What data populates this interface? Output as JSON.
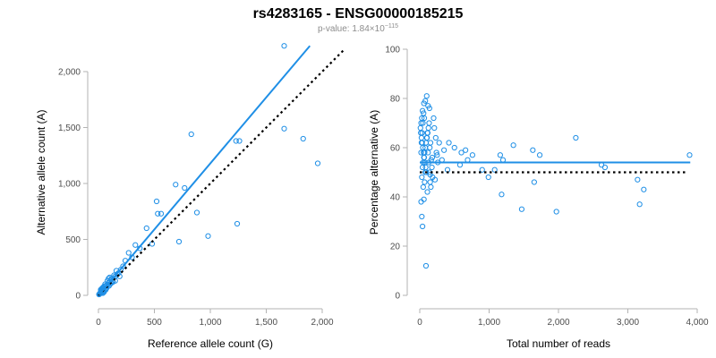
{
  "title": "rs4283165 - ENSG00000185215",
  "subtitle": {
    "prefix": "p-value: 1.84×10",
    "exponent": "−115"
  },
  "colors": {
    "points": "#1f8fe6",
    "fit": "#1f8fe6",
    "reference": "#000000",
    "axis": "#b3b3b3",
    "ticklabel": "#4d4d4d"
  },
  "chart_data": [
    {
      "type": "scatter",
      "xlabel": "Reference allele count (G)",
      "ylabel": "Alternative allele count (A)",
      "xlim": [
        0,
        2000
      ],
      "ylim": [
        0,
        2200
      ],
      "xticks": [
        0,
        500,
        1000,
        1500,
        2000
      ],
      "xtick_labels": [
        "0",
        "500",
        "1,000",
        "1,500",
        "2,000"
      ],
      "yticks": [
        0,
        500,
        1000,
        1500,
        2000
      ],
      "ytick_labels": [
        "0",
        "500",
        "1,000",
        "1,500",
        "2,000"
      ],
      "fit_line": {
        "x": [
          5,
          1890
        ],
        "y": [
          5,
          2230
        ]
      },
      "reference_line": {
        "x": [
          0,
          2200
        ],
        "y": [
          0,
          2200
        ],
        "style": "dotted"
      },
      "points": [
        [
          1660,
          2230
        ],
        [
          830,
          1440
        ],
        [
          1230,
          1380
        ],
        [
          1260,
          1380
        ],
        [
          1660,
          1490
        ],
        [
          1830,
          1400
        ],
        [
          1960,
          1180
        ],
        [
          690,
          990
        ],
        [
          770,
          960
        ],
        [
          880,
          740
        ],
        [
          980,
          530
        ],
        [
          720,
          480
        ],
        [
          1240,
          640
        ],
        [
          520,
          840
        ],
        [
          530,
          730
        ],
        [
          560,
          730
        ],
        [
          430,
          600
        ],
        [
          480,
          460
        ],
        [
          330,
          450
        ],
        [
          370,
          420
        ],
        [
          270,
          380
        ],
        [
          300,
          340
        ],
        [
          240,
          310
        ],
        [
          220,
          260
        ],
        [
          200,
          230
        ],
        [
          180,
          200
        ],
        [
          160,
          220
        ],
        [
          150,
          170
        ],
        [
          140,
          180
        ],
        [
          120,
          150
        ],
        [
          130,
          120
        ],
        [
          110,
          140
        ],
        [
          100,
          120
        ],
        [
          90,
          110
        ],
        [
          80,
          130
        ],
        [
          70,
          90
        ],
        [
          60,
          100
        ],
        [
          50,
          80
        ],
        [
          45,
          60
        ],
        [
          40,
          70
        ],
        [
          35,
          50
        ],
        [
          30,
          40
        ],
        [
          25,
          45
        ],
        [
          20,
          30
        ],
        [
          15,
          20
        ],
        [
          10,
          15
        ],
        [
          8,
          10
        ],
        [
          5,
          8
        ],
        [
          60,
          55
        ],
        [
          70,
          60
        ],
        [
          55,
          75
        ],
        [
          75,
          70
        ],
        [
          85,
          95
        ],
        [
          95,
          85
        ],
        [
          105,
          100
        ],
        [
          115,
          110
        ],
        [
          125,
          130
        ],
        [
          65,
          50
        ],
        [
          45,
          40
        ],
        [
          35,
          30
        ],
        [
          25,
          20
        ],
        [
          40,
          20
        ],
        [
          50,
          30
        ],
        [
          30,
          60
        ],
        [
          20,
          50
        ],
        [
          90,
          150
        ],
        [
          100,
          160
        ],
        [
          150,
          130
        ],
        [
          170,
          190
        ],
        [
          190,
          170
        ]
      ]
    },
    {
      "type": "scatter",
      "xlabel": "Total number of reads",
      "ylabel": "Percentage alternative (A)",
      "xlim": [
        0,
        4000
      ],
      "ylim": [
        0,
        100
      ],
      "xticks": [
        0,
        1000,
        2000,
        3000,
        4000
      ],
      "xtick_labels": [
        "0",
        "1,000",
        "2,000",
        "3,000",
        "4,000"
      ],
      "yticks": [
        0,
        20,
        40,
        60,
        80,
        100
      ],
      "ytick_labels": [
        "0",
        "20",
        "40",
        "60",
        "80",
        "100"
      ],
      "fit_line": {
        "x": [
          0,
          3900
        ],
        "y": [
          54,
          54
        ]
      },
      "reference_line": {
        "x": [
          0,
          3870
        ],
        "y": [
          50,
          50
        ],
        "style": "dotted"
      },
      "points": [
        [
          3890,
          57
        ],
        [
          3230,
          43
        ],
        [
          3170,
          37
        ],
        [
          3140,
          47
        ],
        [
          2670,
          52
        ],
        [
          2620,
          53
        ],
        [
          2250,
          64
        ],
        [
          1970,
          34
        ],
        [
          1730,
          57
        ],
        [
          1650,
          46
        ],
        [
          1630,
          59
        ],
        [
          1470,
          35
        ],
        [
          1350,
          61
        ],
        [
          1200,
          55
        ],
        [
          1160,
          57
        ],
        [
          1180,
          41
        ],
        [
          1080,
          51
        ],
        [
          990,
          48
        ],
        [
          900,
          51
        ],
        [
          760,
          57
        ],
        [
          690,
          55
        ],
        [
          660,
          59
        ],
        [
          600,
          58
        ],
        [
          580,
          53
        ],
        [
          500,
          60
        ],
        [
          420,
          62
        ],
        [
          400,
          51
        ],
        [
          350,
          59
        ],
        [
          320,
          55
        ],
        [
          250,
          57
        ],
        [
          220,
          47
        ],
        [
          180,
          56
        ],
        [
          150,
          49
        ],
        [
          110,
          42
        ],
        [
          90,
          12
        ],
        [
          80,
          50
        ],
        [
          60,
          39
        ],
        [
          40,
          28
        ],
        [
          30,
          32
        ],
        [
          20,
          38
        ],
        [
          50,
          44
        ],
        [
          70,
          46
        ],
        [
          100,
          81
        ],
        [
          120,
          77
        ],
        [
          140,
          76
        ],
        [
          80,
          79
        ],
        [
          60,
          78
        ],
        [
          40,
          75
        ],
        [
          30,
          72
        ],
        [
          20,
          70
        ],
        [
          10,
          68
        ],
        [
          15,
          66
        ],
        [
          25,
          64
        ],
        [
          35,
          62
        ],
        [
          45,
          60
        ],
        [
          55,
          58
        ],
        [
          65,
          56
        ],
        [
          75,
          54
        ],
        [
          85,
          52
        ],
        [
          95,
          50
        ],
        [
          105,
          64
        ],
        [
          115,
          66
        ],
        [
          125,
          68
        ],
        [
          135,
          70
        ],
        [
          145,
          60
        ],
        [
          155,
          62
        ],
        [
          165,
          55
        ],
        [
          175,
          52
        ],
        [
          185,
          48
        ],
        [
          200,
          72
        ],
        [
          210,
          68
        ],
        [
          230,
          64
        ],
        [
          240,
          58
        ],
        [
          260,
          54
        ],
        [
          280,
          62
        ],
        [
          30,
          48
        ],
        [
          40,
          52
        ],
        [
          50,
          54
        ],
        [
          60,
          56
        ],
        [
          70,
          58
        ],
        [
          80,
          60
        ],
        [
          90,
          62
        ],
        [
          100,
          64
        ],
        [
          110,
          66
        ],
        [
          120,
          58
        ],
        [
          130,
          54
        ],
        [
          140,
          50
        ],
        [
          150,
          46
        ],
        [
          160,
          44
        ],
        [
          20,
          58
        ],
        [
          25,
          62
        ],
        [
          35,
          66
        ],
        [
          45,
          70
        ],
        [
          55,
          74
        ],
        [
          65,
          72
        ]
      ]
    }
  ]
}
